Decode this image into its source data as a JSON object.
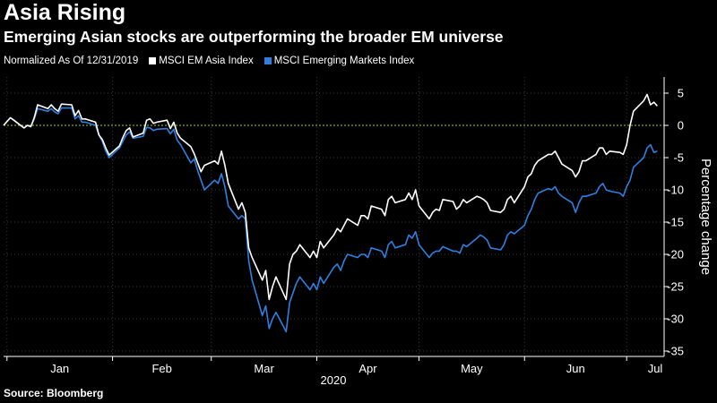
{
  "header": {
    "title": "Asia Rising",
    "subtitle": "Emerging Asian stocks are outperforming the broader EM universe"
  },
  "footer": {
    "source": "Source: Bloomberg"
  },
  "colors": {
    "background": "#000000",
    "text": "#ffffff",
    "series_asia": "#ffffff",
    "series_em": "#2f7fe0",
    "zero_line": "#9acd32"
  },
  "chart_data": {
    "type": "line",
    "title": "Asia Rising",
    "subtitle": "Emerging Asian stocks are outperforming the broader EM universe",
    "legend_note": "Normalized As Of 12/31/2019",
    "xlabel": "2020",
    "ylabel": "Percentage change",
    "ylim": [
      -35,
      5
    ],
    "yticks": [
      5,
      0,
      -5,
      -10,
      -15,
      -20,
      -25,
      -30,
      -35
    ],
    "xtick_labels": [
      "Jan",
      "Feb",
      "Mar",
      "Apr",
      "May",
      "Jun",
      "Jul"
    ],
    "x_range": [
      "2019-12-31",
      "2020-07-12"
    ],
    "grid": true,
    "legend_position": "top-left",
    "zero_line": true,
    "series": [
      {
        "name": "MSCI EM Asia Index",
        "color": "#ffffff",
        "x": [
          "2019-12-31",
          "2020-01-02",
          "2020-01-03",
          "2020-01-06",
          "2020-01-07",
          "2020-01-08",
          "2020-01-09",
          "2020-01-10",
          "2020-01-13",
          "2020-01-14",
          "2020-01-15",
          "2020-01-16",
          "2020-01-17",
          "2020-01-20",
          "2020-01-21",
          "2020-01-22",
          "2020-01-23",
          "2020-01-24",
          "2020-01-27",
          "2020-01-28",
          "2020-01-29",
          "2020-01-30",
          "2020-01-31",
          "2020-02-03",
          "2020-02-04",
          "2020-02-05",
          "2020-02-06",
          "2020-02-07",
          "2020-02-10",
          "2020-02-11",
          "2020-02-12",
          "2020-02-13",
          "2020-02-14",
          "2020-02-17",
          "2020-02-18",
          "2020-02-19",
          "2020-02-20",
          "2020-02-21",
          "2020-02-24",
          "2020-02-25",
          "2020-02-26",
          "2020-02-27",
          "2020-02-28",
          "2020-03-02",
          "2020-03-03",
          "2020-03-04",
          "2020-03-05",
          "2020-03-06",
          "2020-03-09",
          "2020-03-10",
          "2020-03-11",
          "2020-03-12",
          "2020-03-13",
          "2020-03-16",
          "2020-03-17",
          "2020-03-18",
          "2020-03-19",
          "2020-03-20",
          "2020-03-23",
          "2020-03-24",
          "2020-03-25",
          "2020-03-26",
          "2020-03-27",
          "2020-03-30",
          "2020-03-31",
          "2020-04-01",
          "2020-04-02",
          "2020-04-03",
          "2020-04-06",
          "2020-04-07",
          "2020-04-08",
          "2020-04-09",
          "2020-04-10",
          "2020-04-13",
          "2020-04-14",
          "2020-04-15",
          "2020-04-16",
          "2020-04-17",
          "2020-04-20",
          "2020-04-21",
          "2020-04-22",
          "2020-04-23",
          "2020-04-24",
          "2020-04-27",
          "2020-04-28",
          "2020-04-29",
          "2020-04-30",
          "2020-05-01",
          "2020-05-04",
          "2020-05-05",
          "2020-05-06",
          "2020-05-07",
          "2020-05-08",
          "2020-05-11",
          "2020-05-12",
          "2020-05-13",
          "2020-05-14",
          "2020-05-15",
          "2020-05-18",
          "2020-05-19",
          "2020-05-20",
          "2020-05-21",
          "2020-05-22",
          "2020-05-25",
          "2020-05-26",
          "2020-05-27",
          "2020-05-28",
          "2020-05-29",
          "2020-06-01",
          "2020-06-02",
          "2020-06-03",
          "2020-06-04",
          "2020-06-05",
          "2020-06-08",
          "2020-06-09",
          "2020-06-10",
          "2020-06-11",
          "2020-06-12",
          "2020-06-15",
          "2020-06-16",
          "2020-06-17",
          "2020-06-18",
          "2020-06-19",
          "2020-06-22",
          "2020-06-23",
          "2020-06-24",
          "2020-06-25",
          "2020-06-26",
          "2020-06-29",
          "2020-06-30",
          "2020-07-01",
          "2020-07-02",
          "2020-07-03",
          "2020-07-06",
          "2020-07-07",
          "2020-07-08",
          "2020-07-09",
          "2020-07-10"
        ],
        "values": [
          0,
          1.2,
          0.8,
          -0.4,
          0,
          -0.2,
          1.2,
          3.2,
          2.6,
          3.2,
          2.6,
          2.2,
          3.3,
          3.2,
          1.5,
          2.3,
          1.0,
          1.0,
          0.5,
          -1.5,
          -2.2,
          -3.5,
          -4.6,
          -3.2,
          -1.9,
          -0.8,
          -0.4,
          -1.8,
          -1.2,
          0.8,
          1.0,
          0.3,
          0.5,
          0.8,
          -0.5,
          0.5,
          -1.2,
          -2.0,
          -3.3,
          -4.4,
          -5.8,
          -7.2,
          -6.2,
          -5.5,
          -6.0,
          -4.0,
          -6.2,
          -9.0,
          -13.0,
          -12.0,
          -13.5,
          -19.0,
          -20.5,
          -24.0,
          -22.5,
          -27.0,
          -25.0,
          -23.5,
          -27.0,
          -21.5,
          -20.0,
          -19.5,
          -18.5,
          -20.5,
          -19.5,
          -20.5,
          -18.0,
          -19.0,
          -17.0,
          -16.0,
          -16.5,
          -15.5,
          -14.5,
          -15.5,
          -14.0,
          -14.0,
          -14.5,
          -12.5,
          -13.0,
          -14.0,
          -11.5,
          -11.0,
          -12.0,
          -11.5,
          -10.5,
          -11.5,
          -10.0,
          -12.5,
          -14.5,
          -13.5,
          -13.0,
          -13.2,
          -11.5,
          -11.8,
          -13.0,
          -12.5,
          -11.5,
          -12.0,
          -11.0,
          -11.2,
          -11.5,
          -12.0,
          -13.2,
          -13.5,
          -13.0,
          -11.5,
          -11.0,
          -12.0,
          -9.5,
          -8.0,
          -7.5,
          -6.2,
          -5.5,
          -4.5,
          -4.5,
          -4.0,
          -5.0,
          -6.0,
          -7.0,
          -8.0,
          -7.2,
          -5.5,
          -5.5,
          -4.5,
          -3.5,
          -3.5,
          -4.5,
          -4.0,
          -4.2,
          -4.5,
          -3.0,
          0.0,
          2.2,
          3.8,
          4.8,
          3.2,
          3.6,
          3.0
        ]
      },
      {
        "name": "MSCI Emerging Markets Index",
        "color": "#2f7fe0",
        "x": [
          "2019-12-31",
          "2020-01-02",
          "2020-01-03",
          "2020-01-06",
          "2020-01-07",
          "2020-01-08",
          "2020-01-09",
          "2020-01-10",
          "2020-01-13",
          "2020-01-14",
          "2020-01-15",
          "2020-01-16",
          "2020-01-17",
          "2020-01-20",
          "2020-01-21",
          "2020-01-22",
          "2020-01-23",
          "2020-01-24",
          "2020-01-27",
          "2020-01-28",
          "2020-01-29",
          "2020-01-30",
          "2020-01-31",
          "2020-02-03",
          "2020-02-04",
          "2020-02-05",
          "2020-02-06",
          "2020-02-07",
          "2020-02-10",
          "2020-02-11",
          "2020-02-12",
          "2020-02-13",
          "2020-02-14",
          "2020-02-17",
          "2020-02-18",
          "2020-02-19",
          "2020-02-20",
          "2020-02-21",
          "2020-02-24",
          "2020-02-25",
          "2020-02-26",
          "2020-02-27",
          "2020-02-28",
          "2020-03-02",
          "2020-03-03",
          "2020-03-04",
          "2020-03-05",
          "2020-03-06",
          "2020-03-09",
          "2020-03-10",
          "2020-03-11",
          "2020-03-12",
          "2020-03-13",
          "2020-03-16",
          "2020-03-17",
          "2020-03-18",
          "2020-03-19",
          "2020-03-20",
          "2020-03-23",
          "2020-03-24",
          "2020-03-25",
          "2020-03-26",
          "2020-03-27",
          "2020-03-30",
          "2020-03-31",
          "2020-04-01",
          "2020-04-02",
          "2020-04-03",
          "2020-04-06",
          "2020-04-07",
          "2020-04-08",
          "2020-04-09",
          "2020-04-10",
          "2020-04-13",
          "2020-04-14",
          "2020-04-15",
          "2020-04-16",
          "2020-04-17",
          "2020-04-20",
          "2020-04-21",
          "2020-04-22",
          "2020-04-23",
          "2020-04-24",
          "2020-04-27",
          "2020-04-28",
          "2020-04-29",
          "2020-04-30",
          "2020-05-01",
          "2020-05-04",
          "2020-05-05",
          "2020-05-06",
          "2020-05-07",
          "2020-05-08",
          "2020-05-11",
          "2020-05-12",
          "2020-05-13",
          "2020-05-14",
          "2020-05-15",
          "2020-05-18",
          "2020-05-19",
          "2020-05-20",
          "2020-05-21",
          "2020-05-22",
          "2020-05-25",
          "2020-05-26",
          "2020-05-27",
          "2020-05-28",
          "2020-05-29",
          "2020-06-01",
          "2020-06-02",
          "2020-06-03",
          "2020-06-04",
          "2020-06-05",
          "2020-06-08",
          "2020-06-09",
          "2020-06-10",
          "2020-06-11",
          "2020-06-12",
          "2020-06-15",
          "2020-06-16",
          "2020-06-17",
          "2020-06-18",
          "2020-06-19",
          "2020-06-22",
          "2020-06-23",
          "2020-06-24",
          "2020-06-25",
          "2020-06-26",
          "2020-06-29",
          "2020-06-30",
          "2020-07-01",
          "2020-07-02",
          "2020-07-03",
          "2020-07-06",
          "2020-07-07",
          "2020-07-08",
          "2020-07-09",
          "2020-07-10"
        ],
        "values": [
          0,
          1.2,
          0.8,
          -0.4,
          0,
          -0.2,
          1.0,
          2.6,
          2.2,
          2.6,
          2.1,
          1.8,
          2.7,
          2.7,
          1.0,
          1.5,
          0.5,
          0.5,
          0,
          -1.5,
          -2.5,
          -4.0,
          -5.0,
          -3.5,
          -2.5,
          -1.5,
          -1.0,
          -2.0,
          -1.7,
          -0.3,
          -0.4,
          -0.8,
          -0.6,
          -0.5,
          -1.3,
          -0.6,
          -2.3,
          -3.0,
          -5.8,
          -5.2,
          -7.0,
          -8.5,
          -10.0,
          -8.5,
          -9.0,
          -7.5,
          -9.5,
          -12.5,
          -14.5,
          -14.0,
          -14.5,
          -21.0,
          -24.0,
          -29.5,
          -28.0,
          -31.5,
          -30.0,
          -29.0,
          -32.0,
          -27.5,
          -26.0,
          -24.5,
          -23.5,
          -25.5,
          -24.5,
          -25.5,
          -23.5,
          -24.5,
          -22.0,
          -21.5,
          -22.5,
          -21.0,
          -20.0,
          -20.5,
          -20.0,
          -20.0,
          -20.5,
          -19.0,
          -19.5,
          -20.5,
          -18.5,
          -18.0,
          -19.0,
          -18.5,
          -17.0,
          -17.5,
          -16.5,
          -18.5,
          -20.5,
          -19.8,
          -19.5,
          -19.5,
          -18.8,
          -19.5,
          -19.5,
          -19.8,
          -18.5,
          -18.8,
          -17.5,
          -17.0,
          -17.3,
          -17.8,
          -19.0,
          -19.3,
          -18.5,
          -17.0,
          -16.5,
          -16.8,
          -15.5,
          -14.0,
          -13.0,
          -11.5,
          -10.5,
          -9.8,
          -10.0,
          -9.5,
          -10.5,
          -11.0,
          -12.0,
          -13.5,
          -12.0,
          -11.0,
          -11.0,
          -10.5,
          -9.5,
          -9.0,
          -10.0,
          -10.2,
          -10.5,
          -11.0,
          -9.5,
          -8.5,
          -6.5,
          -5.0,
          -3.5,
          -3.0,
          -4.2,
          -4.0
        ]
      }
    ]
  }
}
